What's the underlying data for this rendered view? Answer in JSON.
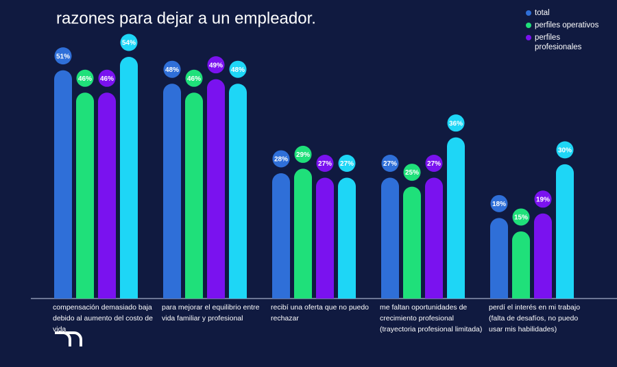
{
  "chart_data": {
    "type": "bar",
    "title": "razones para dejar a un empleador.",
    "categories": [
      "compensación demasiado baja debido al aumento del costo de vida",
      "para mejorar el equilibrio entre vida familiar y profesional",
      "recibí una oferta que no puedo rechazar",
      "me faltan oportunidades de crecimiento profesional (trayectoria profesional limitada)",
      "perdí el interés en mi trabajo (falta de desafíos, no puedo usar mis habilidades)"
    ],
    "series": [
      {
        "name": "total",
        "color": "#2f6fd8",
        "values": [
          51,
          48,
          28,
          27,
          18
        ],
        "value_labels": [
          "51%",
          "48%",
          "28%",
          "27%",
          "18%"
        ]
      },
      {
        "name": "perfiles operativos",
        "color": "#1fe07a",
        "values": [
          46,
          46,
          29,
          25,
          15
        ],
        "value_labels": [
          "46%",
          "46%",
          "29%",
          "25%",
          "15%"
        ]
      },
      {
        "name": "perfiles profesionales",
        "color": "#7a12ef",
        "values": [
          46,
          49,
          27,
          27,
          19
        ],
        "value_labels": [
          "46%",
          "49%",
          "27%",
          "27%",
          "19%"
        ]
      },
      {
        "color": "#1ed6f6",
        "values": [
          54,
          48,
          27,
          36,
          30
        ],
        "value_labels": [
          "54%",
          "48%",
          "27%",
          "36%",
          "30%"
        ]
      }
    ],
    "legend": "top-right"
  }
}
